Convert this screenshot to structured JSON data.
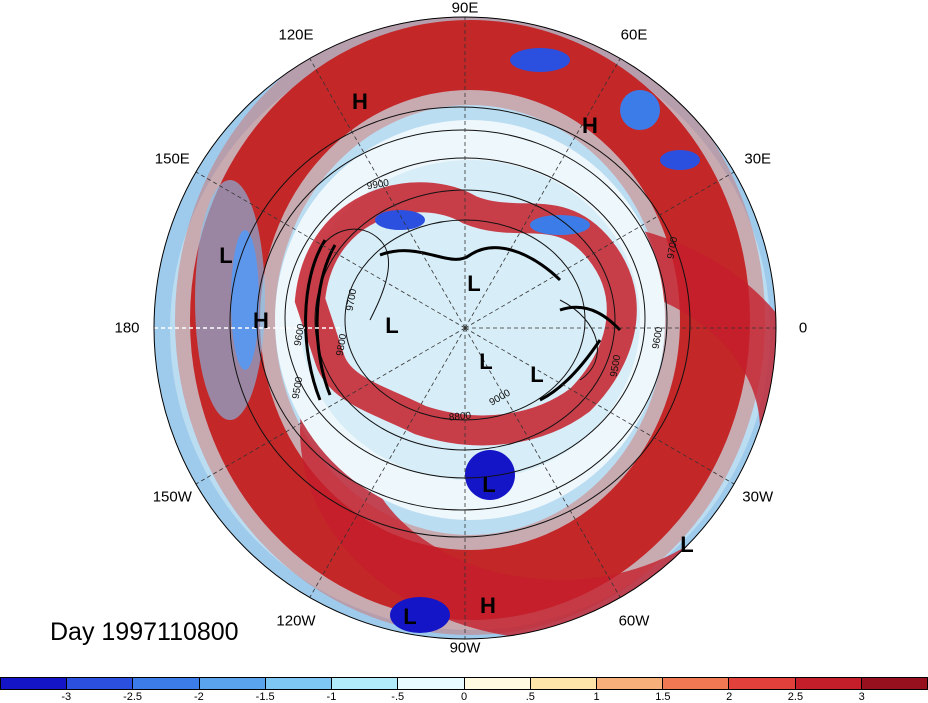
{
  "title": "Day 1997110800",
  "longitude_labels": [
    {
      "text": "90E",
      "bearing": 0
    },
    {
      "text": "60E",
      "bearing": 30
    },
    {
      "text": "30E",
      "bearing": 60
    },
    {
      "text": "0",
      "bearing": 90
    },
    {
      "text": "30W",
      "bearing": 120
    },
    {
      "text": "60W",
      "bearing": 150
    },
    {
      "text": "90W",
      "bearing": 180
    },
    {
      "text": "120W",
      "bearing": 210
    },
    {
      "text": "150W",
      "bearing": 240
    },
    {
      "text": "180",
      "bearing": 270
    },
    {
      "text": "150E",
      "bearing": 300
    },
    {
      "text": "120E",
      "bearing": 330
    }
  ],
  "pressure_markers": [
    {
      "text": "H",
      "name": "high-marker-1"
    },
    {
      "text": "H",
      "name": "high-marker-2"
    },
    {
      "text": "L",
      "name": "low-marker-1"
    },
    {
      "text": "H",
      "name": "high-marker-3"
    },
    {
      "text": "L",
      "name": "low-marker-2"
    },
    {
      "text": "L",
      "name": "low-marker-3"
    },
    {
      "text": "L",
      "name": "low-marker-4"
    },
    {
      "text": "L",
      "name": "low-marker-5"
    },
    {
      "text": "L",
      "name": "low-marker-6"
    },
    {
      "text": "L",
      "name": "low-marker-7"
    },
    {
      "text": "L",
      "name": "low-marker-8"
    },
    {
      "text": "H",
      "name": "high-marker-4"
    }
  ],
  "contour_labels": [
    "9500",
    "9600",
    "9700",
    "9800",
    "9900",
    "8800",
    "9000",
    "9500",
    "9600",
    "9700"
  ],
  "colorbar": {
    "colors": [
      "#1515c8",
      "#2b50e0",
      "#3c7ce8",
      "#5aa4ee",
      "#7ec6f4",
      "#b2ecfb",
      "#e8fbff",
      "#fffae0",
      "#fde4a8",
      "#f7b07a",
      "#f07852",
      "#e2403a",
      "#c41e2a",
      "#96101e"
    ],
    "tick_labels": [
      "-3",
      "-2.5",
      "-2",
      "-1.5",
      "-1",
      "-.5",
      "0",
      ".5",
      "1",
      "1.5",
      "2",
      "2.5",
      "3"
    ]
  }
}
